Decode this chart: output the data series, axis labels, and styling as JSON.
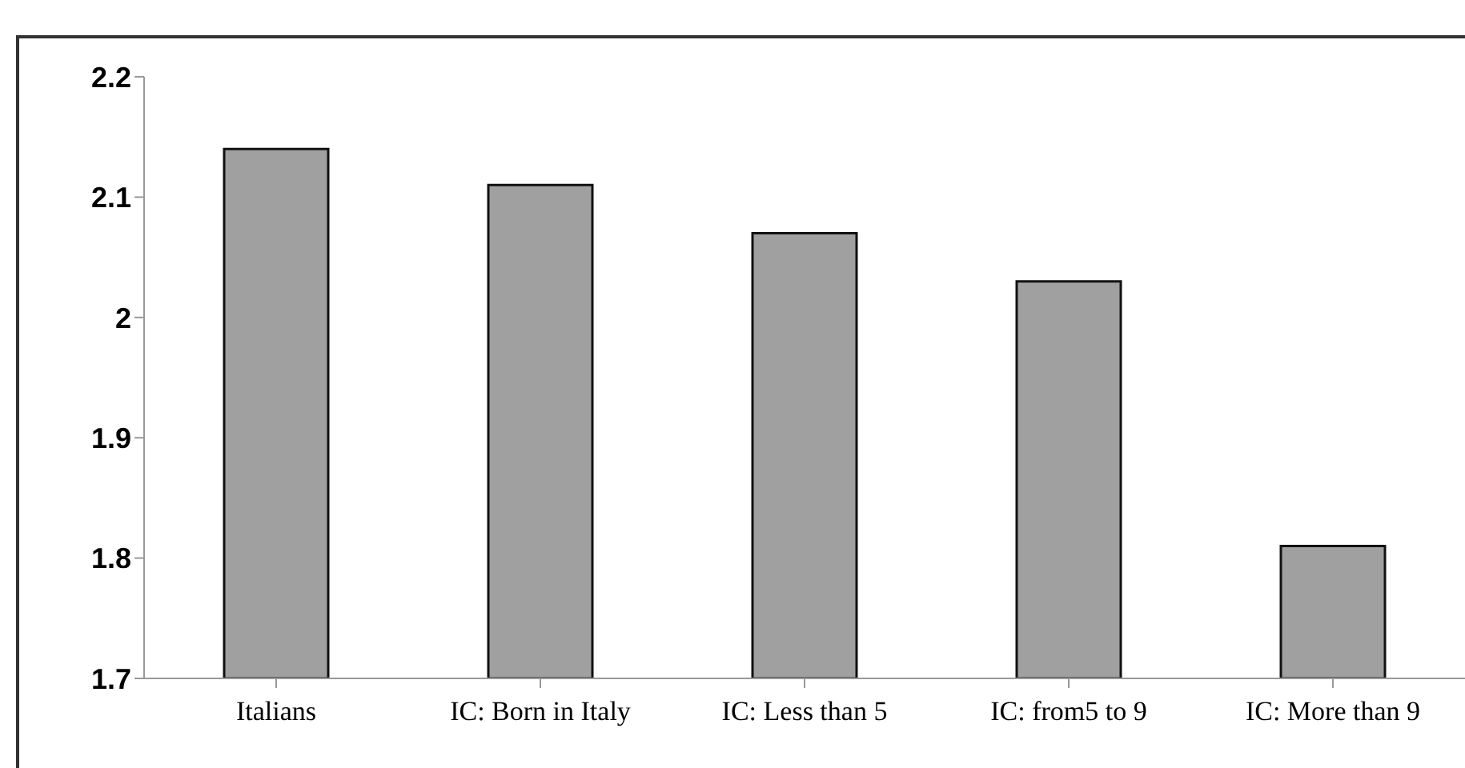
{
  "chart_data": {
    "type": "bar",
    "categories": [
      "Italians",
      "IC: Born in Italy",
      "IC: Less than 5",
      "IC: from5 to 9",
      "IC: More than 9"
    ],
    "values": [
      2.14,
      2.11,
      2.07,
      2.03,
      1.81
    ],
    "color": "#a0a0a0",
    "ylim": [
      1.7,
      2.2
    ],
    "yticks": [
      1.7,
      1.8,
      1.9,
      2,
      2.1,
      2.2
    ],
    "grid": false,
    "legend": false
  }
}
